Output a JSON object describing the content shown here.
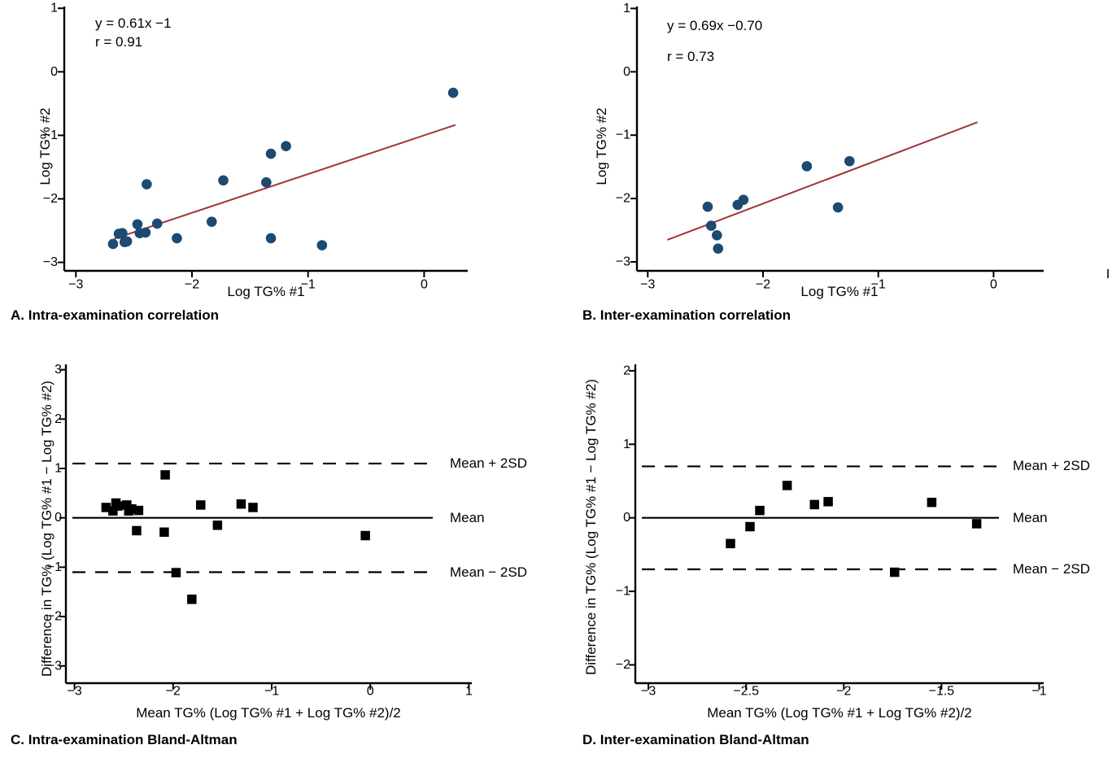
{
  "figure": {
    "background": "#ffffff"
  },
  "colors": {
    "scatter_dot": "#1c4a70",
    "fit_line": "#a03438",
    "ba_marker": "#000000",
    "axis": "#000000",
    "text": "#000000"
  },
  "chart_data": [
    {
      "id": "A",
      "type": "scatter",
      "caption": "A. Intra-examination correlation",
      "xlabel": "Log TG% #1",
      "ylabel": "Log TG% #2",
      "annotation_lines": [
        "y = 0.61x −1",
        "r = 0.91"
      ],
      "xticks": {
        "values": [
          -3,
          -2,
          -1,
          0
        ],
        "labels": [
          "−3",
          "−2",
          "−1",
          "0"
        ]
      },
      "yticks": {
        "values": [
          1,
          0,
          -1,
          -2,
          -3
        ],
        "labels": [
          "1",
          "0",
          "−1",
          "−2",
          "−3"
        ]
      },
      "xlim": [
        -3.1,
        0.38
      ],
      "ylim": [
        -3.15,
        1.03
      ],
      "points": [
        [
          -2.68,
          -2.71
        ],
        [
          -2.63,
          -2.55
        ],
        [
          -2.6,
          -2.54
        ],
        [
          -2.58,
          -2.68
        ],
        [
          -2.56,
          -2.67
        ],
        [
          -2.47,
          -2.4
        ],
        [
          -2.45,
          -2.54
        ],
        [
          -2.4,
          -2.53
        ],
        [
          -2.39,
          -1.77
        ],
        [
          -2.3,
          -2.39
        ],
        [
          -2.13,
          -2.62
        ],
        [
          -1.83,
          -2.36
        ],
        [
          -1.73,
          -1.71
        ],
        [
          -1.36,
          -1.74
        ],
        [
          -1.32,
          -1.29
        ],
        [
          -1.32,
          -2.62
        ],
        [
          -1.19,
          -1.17
        ],
        [
          -0.88,
          -2.73
        ],
        [
          0.25,
          -0.33
        ]
      ],
      "fit_line": {
        "slope": 0.61,
        "intercept": -1,
        "x_start": -2.67,
        "x_end": 0.27
      },
      "r": 0.91
    },
    {
      "id": "B",
      "type": "scatter",
      "caption": "B. Inter-examination correlation",
      "xlabel": "Log TG% #1",
      "ylabel": "Log TG% #2",
      "annotation_lines": [
        "y = 0.69x −0.70",
        "r = 0.73"
      ],
      "xticks": {
        "values": [
          -3,
          -2,
          -1,
          0
        ],
        "labels": [
          "−3",
          "−2",
          "−1",
          "0"
        ]
      },
      "yticks": {
        "values": [
          1,
          0,
          -1,
          -2,
          -3
        ],
        "labels": [
          "1",
          "0",
          "−1",
          "−2",
          "−3"
        ]
      },
      "xlim": [
        -3.1,
        0.43
      ],
      "ylim": [
        -3.15,
        1.03
      ],
      "points": [
        [
          -2.48,
          -2.13
        ],
        [
          -2.45,
          -2.43
        ],
        [
          -2.4,
          -2.58
        ],
        [
          -2.39,
          -2.79
        ],
        [
          -2.22,
          -2.1
        ],
        [
          -2.17,
          -2.02
        ],
        [
          -1.62,
          -1.49
        ],
        [
          -1.35,
          -2.14
        ],
        [
          -1.25,
          -1.41
        ]
      ],
      "fit_line": {
        "slope": 0.69,
        "intercept": -0.7,
        "x_start": -2.83,
        "x_end": -0.14
      },
      "r": 0.73
    },
    {
      "id": "C",
      "type": "bland_altman",
      "caption": "C. Intra-examination Bland-Altman",
      "xlabel": "Mean TG% (Log TG% #1 + Log TG% #2)/2",
      "ylabel": "Difference in TG% (Log TG% #1 − Log TG% #2)",
      "xticks": {
        "values": [
          -3,
          -2,
          -1,
          0,
          1
        ],
        "labels": [
          "−3",
          "−2",
          "−1",
          "0",
          "1"
        ]
      },
      "yticks": {
        "values": [
          3,
          2,
          1,
          0,
          -1,
          -2,
          -3
        ],
        "labels": [
          "3",
          "2",
          "1",
          "0",
          "−1",
          "−2",
          "−3"
        ]
      },
      "xlim": [
        -3.1,
        1.03
      ],
      "ylim": [
        -3.35,
        3.11
      ],
      "mean_line": {
        "value": 0,
        "label": "Mean"
      },
      "upper_line": {
        "value": 1.1,
        "label": "Mean + 2SD"
      },
      "lower_line": {
        "value": -1.1,
        "label": "Mean − 2SD"
      },
      "points": [
        [
          -2.68,
          0.21
        ],
        [
          -2.61,
          0.14
        ],
        [
          -2.58,
          0.3
        ],
        [
          -2.56,
          0.24
        ],
        [
          -2.47,
          0.26
        ],
        [
          -2.45,
          0.14
        ],
        [
          -2.42,
          0.18
        ],
        [
          -2.35,
          0.15
        ],
        [
          -2.37,
          -0.26
        ],
        [
          -2.09,
          -0.29
        ],
        [
          -2.08,
          0.87
        ],
        [
          -1.97,
          -1.11
        ],
        [
          -1.81,
          -1.65
        ],
        [
          -1.72,
          0.26
        ],
        [
          -1.55,
          -0.15
        ],
        [
          -1.31,
          0.28
        ],
        [
          -1.19,
          0.21
        ],
        [
          -0.05,
          -0.36
        ]
      ]
    },
    {
      "id": "D",
      "type": "bland_altman",
      "caption": "D. Inter-examination Bland-Altman",
      "xlabel": "Mean TG% (Log TG% #1 + Log TG% #2)/2",
      "ylabel": "Difference in TG% (Log TG% #1 − Log TG% #2)",
      "xticks": {
        "values": [
          -3,
          -2.5,
          -2,
          -1.5,
          -1
        ],
        "labels": [
          "−3",
          "−2.5",
          "−2",
          "−1.5",
          "−1"
        ]
      },
      "yticks": {
        "values": [
          2,
          1,
          0,
          -1,
          -2
        ],
        "labels": [
          "2",
          "1",
          "0",
          "−1",
          "−2"
        ]
      },
      "xlim": [
        -3.07,
        -0.98
      ],
      "ylim": [
        -2.25,
        2.09
      ],
      "mean_line": {
        "value": 0,
        "label": "Mean"
      },
      "upper_line": {
        "value": 0.7,
        "label": "Mean + 2SD"
      },
      "lower_line": {
        "value": -0.7,
        "label": "Mean − 2SD"
      },
      "points": [
        [
          -2.58,
          -0.35
        ],
        [
          -2.48,
          -0.12
        ],
        [
          -2.43,
          0.1
        ],
        [
          -2.29,
          0.44
        ],
        [
          -2.15,
          0.18
        ],
        [
          -2.08,
          0.22
        ],
        [
          -1.74,
          -0.74
        ],
        [
          -1.55,
          0.21
        ],
        [
          -1.32,
          -0.08
        ]
      ]
    }
  ]
}
